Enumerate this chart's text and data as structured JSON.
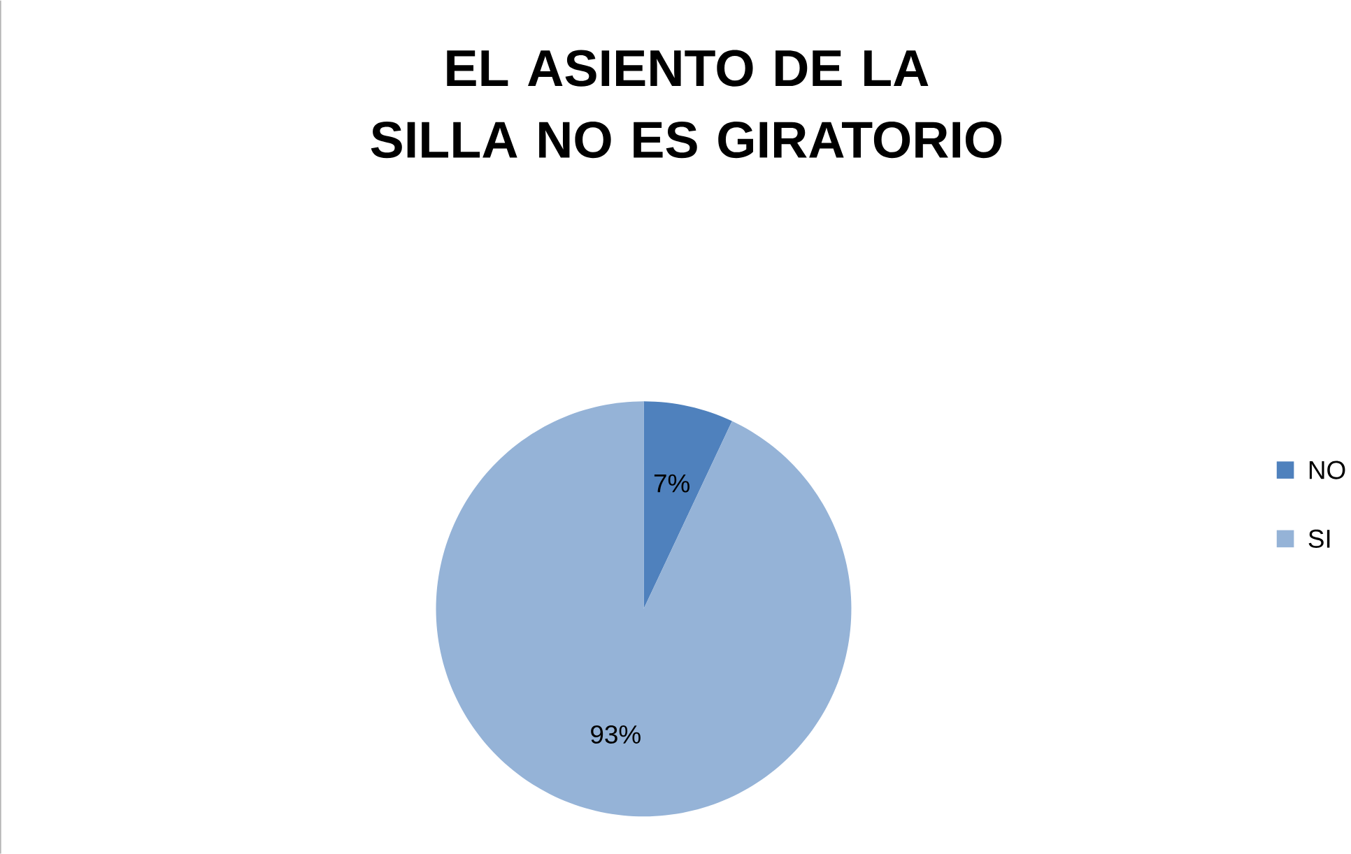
{
  "chart_data": {
    "type": "pie",
    "title": "EL ASIENTO DE LA SILLA NO ES GIRATORIO",
    "categories": [
      "NO",
      "SI"
    ],
    "values": [
      7,
      93
    ],
    "colors": [
      "#4f81bd",
      "#95b3d7"
    ],
    "value_labels": [
      "7%",
      "93%"
    ],
    "legend": "right"
  }
}
